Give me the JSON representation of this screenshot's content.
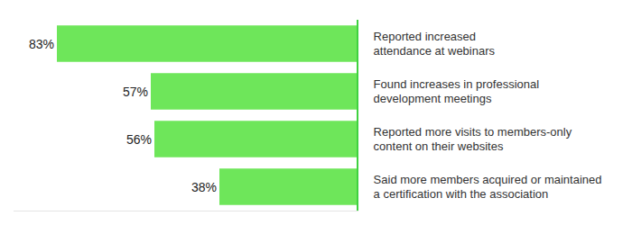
{
  "chart_data": {
    "type": "bar",
    "orientation": "horizontal",
    "categories": [
      "Reported increased\nattendance at webinars",
      "Found increases in professional\ndevelopment meetings",
      "Reported more visits to members-only\ncontent on their websites",
      "Said more members acquired or maintained\na certification with the association"
    ],
    "values": [
      83,
      57,
      56,
      38
    ],
    "value_labels": [
      "83%",
      "57%",
      "56%",
      "38%"
    ],
    "color": "#6ee65a",
    "xlim": [
      0,
      95
    ],
    "grid": false,
    "data_labels": true,
    "tick_labels": "y"
  }
}
